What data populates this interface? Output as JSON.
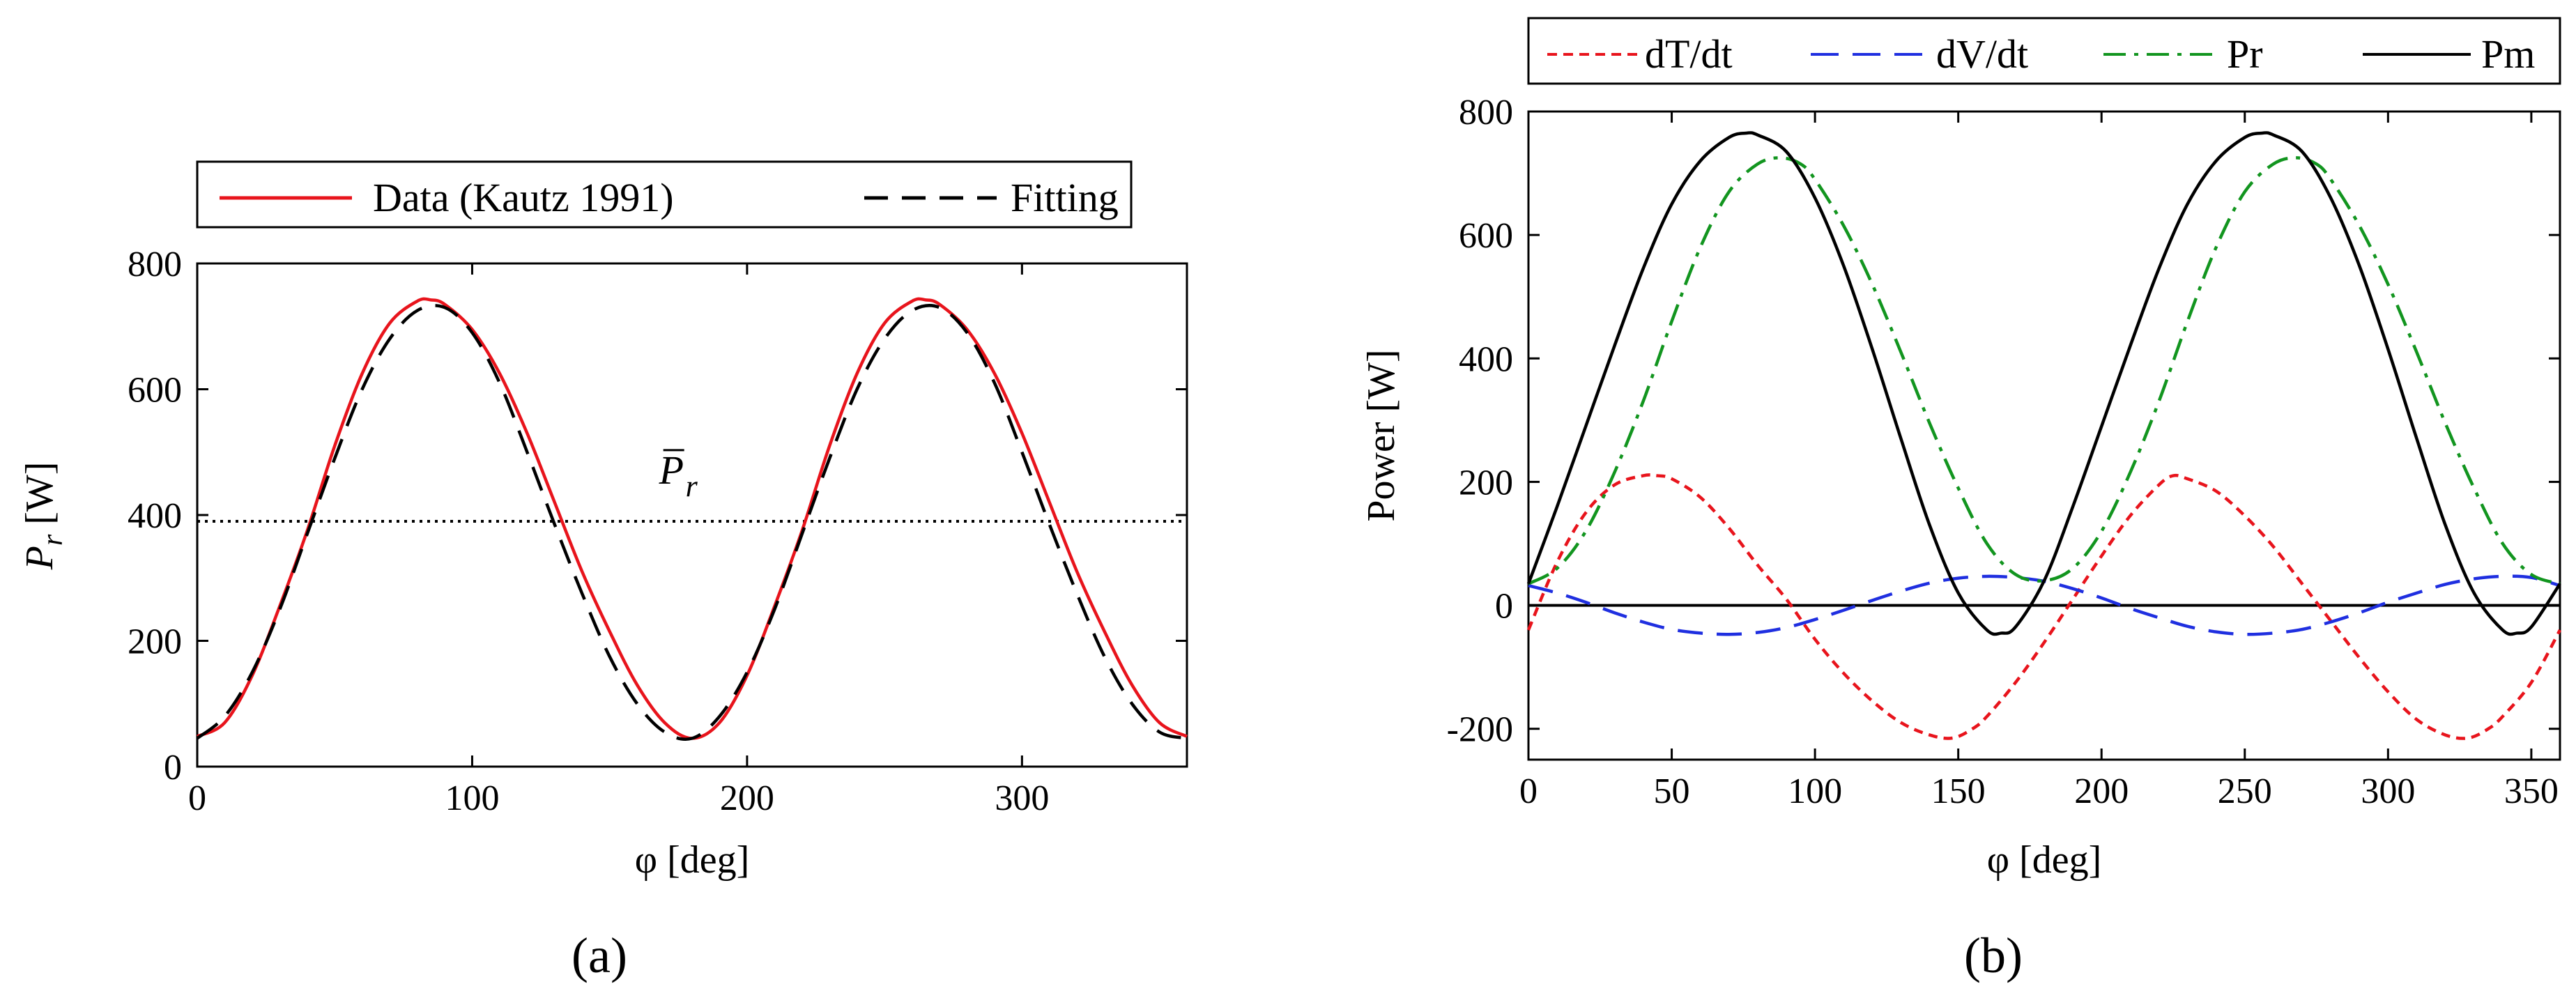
{
  "chart_data": [
    {
      "id": "a",
      "type": "line",
      "caption": "(a)",
      "xlabel": "φ [deg]",
      "ylabel": "P",
      "ylabel_sub": "r",
      "ylabel_unit": " [W]",
      "xlim": [
        0,
        360
      ],
      "ylim": [
        0,
        800
      ],
      "xticks": [
        "0",
        "100",
        "200",
        "300"
      ],
      "xtick_values": [
        0,
        100,
        200,
        300
      ],
      "yticks": [
        "0",
        "200",
        "400",
        "600",
        "800"
      ],
      "ytick_values": [
        0,
        200,
        400,
        600,
        800
      ],
      "legend": [
        "Data (Kautz 1991)",
        "Fitting"
      ],
      "legend_placement": "above",
      "annotation": {
        "text": "P",
        "sub": "r",
        "overbar": true,
        "x": 168,
        "y": 450
      },
      "reference_line": {
        "y": 390,
        "style": "dotted",
        "color": "#000000"
      },
      "series": [
        {
          "name": "Data (Kautz 1991)",
          "color": "#e8141c",
          "style": "solid",
          "x": [
            0,
            10,
            20,
            30,
            40,
            50,
            60,
            70,
            80,
            85,
            90,
            100,
            110,
            120,
            130,
            140,
            150,
            160,
            170,
            180,
            190,
            200,
            210,
            220,
            230,
            240,
            250,
            260,
            265,
            270,
            280,
            290,
            300,
            310,
            320,
            330,
            340,
            350,
            360
          ],
          "y": [
            48,
            70,
            145,
            255,
            375,
            510,
            625,
            705,
            740,
            742,
            735,
            695,
            625,
            530,
            420,
            310,
            215,
            130,
            70,
            45,
            70,
            145,
            255,
            375,
            510,
            625,
            705,
            740,
            742,
            735,
            695,
            625,
            530,
            420,
            310,
            215,
            130,
            70,
            48
          ]
        },
        {
          "name": "Fitting",
          "color": "#000000",
          "style": "dashed",
          "x": [
            0,
            10,
            20,
            30,
            40,
            50,
            60,
            70,
            80,
            90,
            100,
            110,
            120,
            130,
            140,
            150,
            160,
            170,
            180,
            190,
            200,
            210,
            220,
            230,
            240,
            250,
            260,
            270,
            280,
            290,
            300,
            310,
            320,
            330,
            340,
            350,
            360
          ],
          "y": [
            45,
            80,
            150,
            250,
            370,
            490,
            600,
            680,
            725,
            730,
            690,
            610,
            500,
            385,
            275,
            175,
            100,
            55,
            45,
            80,
            150,
            250,
            370,
            490,
            600,
            680,
            725,
            730,
            690,
            610,
            500,
            385,
            275,
            175,
            100,
            55,
            45
          ]
        }
      ]
    },
    {
      "id": "b",
      "type": "line",
      "caption": "(b)",
      "xlabel": "φ [deg]",
      "ylabel": "Power [W]",
      "xlim": [
        0,
        360
      ],
      "ylim": [
        -250,
        800
      ],
      "xticks": [
        "0",
        "50",
        "100",
        "150",
        "200",
        "250",
        "300",
        "350"
      ],
      "xtick_values": [
        0,
        50,
        100,
        150,
        200,
        250,
        300,
        350
      ],
      "yticks": [
        "-200",
        "0",
        "200",
        "400",
        "600",
        "800"
      ],
      "ytick_values": [
        -200,
        0,
        200,
        400,
        600,
        800
      ],
      "legend": [
        "dT/dt",
        "dV/dt",
        "Pr",
        "Pm"
      ],
      "legend_placement": "above",
      "reference_line": {
        "y": 0,
        "style": "solid",
        "color": "#000000"
      },
      "series": [
        {
          "name": "dT/dt",
          "color": "#e8141c",
          "style": "dotted",
          "x": [
            0,
            10,
            20,
            30,
            40,
            45,
            50,
            60,
            70,
            80,
            90,
            100,
            110,
            120,
            130,
            140,
            148,
            155,
            160,
            170,
            180,
            190,
            200,
            210,
            220,
            225,
            230,
            240,
            250,
            260,
            270,
            280,
            290,
            300,
            310,
            320,
            328,
            335,
            340,
            350,
            360
          ],
          "y": [
            -40,
            70,
            150,
            195,
            210,
            210,
            205,
            175,
            125,
            65,
            10,
            -55,
            -110,
            -155,
            -190,
            -210,
            -215,
            -200,
            -180,
            -125,
            -60,
            10,
            80,
            145,
            195,
            210,
            205,
            185,
            145,
            95,
            35,
            -25,
            -85,
            -140,
            -185,
            -210,
            -215,
            -200,
            -180,
            -125,
            -40
          ]
        },
        {
          "name": "dV/dt",
          "color": "#1f2fe0",
          "style": "dashed",
          "x": [
            0,
            10,
            20,
            30,
            40,
            50,
            60,
            70,
            80,
            90,
            100,
            110,
            120,
            130,
            140,
            150,
            160,
            170,
            180,
            190,
            200,
            210,
            220,
            230,
            240,
            250,
            260,
            270,
            280,
            290,
            300,
            310,
            320,
            330,
            340,
            350,
            360
          ],
          "y": [
            32,
            20,
            5,
            -12,
            -27,
            -39,
            -45,
            -47,
            -44,
            -36,
            -23,
            -8,
            8,
            23,
            36,
            44,
            47,
            45,
            39,
            27,
            12,
            -5,
            -20,
            -34,
            -43,
            -47,
            -45,
            -39,
            -27,
            -12,
            5,
            20,
            34,
            43,
            47,
            45,
            32
          ]
        },
        {
          "name": "Pr",
          "color": "#12951f",
          "style": "dashdot",
          "x": [
            0,
            10,
            20,
            30,
            40,
            50,
            60,
            70,
            80,
            88,
            95,
            100,
            110,
            120,
            130,
            140,
            150,
            160,
            170,
            180,
            190,
            200,
            210,
            220,
            230,
            240,
            250,
            260,
            268,
            275,
            280,
            290,
            300,
            310,
            320,
            330,
            340,
            350,
            360
          ],
          "y": [
            35,
            60,
            120,
            215,
            330,
            460,
            580,
            670,
            715,
            725,
            715,
            690,
            615,
            520,
            410,
            295,
            190,
            100,
            50,
            40,
            60,
            120,
            215,
            330,
            460,
            580,
            670,
            715,
            725,
            715,
            690,
            615,
            520,
            410,
            295,
            190,
            100,
            50,
            35
          ]
        },
        {
          "name": "Pm",
          "color": "#000000",
          "style": "solid",
          "x": [
            0,
            10,
            20,
            30,
            40,
            50,
            60,
            70,
            76,
            80,
            90,
            100,
            110,
            120,
            130,
            140,
            150,
            160,
            165,
            170,
            180,
            190,
            200,
            210,
            220,
            230,
            240,
            250,
            256,
            260,
            270,
            280,
            290,
            300,
            310,
            320,
            330,
            340,
            345,
            350,
            360
          ],
          "y": [
            35,
            160,
            290,
            420,
            545,
            650,
            720,
            758,
            765,
            762,
            735,
            660,
            550,
            415,
            270,
            130,
            20,
            -40,
            -45,
            -35,
            40,
            160,
            290,
            420,
            545,
            650,
            720,
            758,
            765,
            762,
            735,
            660,
            550,
            415,
            270,
            130,
            20,
            -40,
            -45,
            -35,
            35
          ]
        }
      ]
    }
  ]
}
